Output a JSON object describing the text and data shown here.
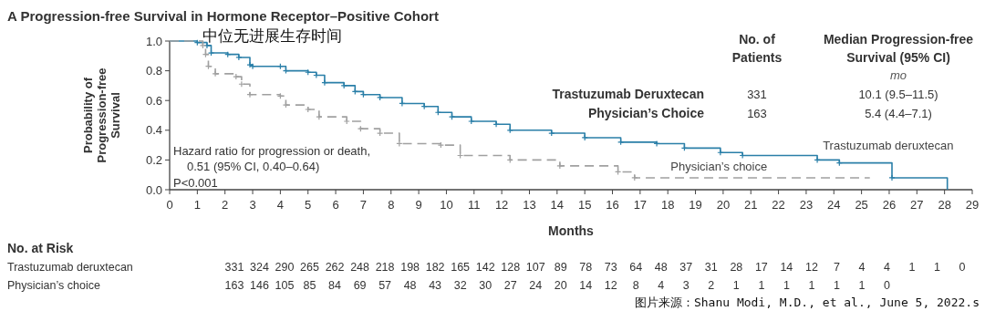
{
  "chart_data": {
    "type": "step",
    "title": "A  Progression-free Survival in Hormone Receptor–Positive Cohort",
    "subtitle": "中位无进展生存时间",
    "xlabel": "Months",
    "ylabel": "Probability of Progression-free Survival",
    "xlim": [
      0,
      29
    ],
    "xticks": [
      0,
      1,
      2,
      3,
      4,
      5,
      6,
      7,
      8,
      9,
      10,
      11,
      12,
      13,
      14,
      15,
      16,
      17,
      18,
      19,
      20,
      21,
      22,
      23,
      24,
      25,
      26,
      27,
      28,
      29
    ],
    "ylim": [
      0,
      1
    ],
    "yticks": [
      {
        "value": 0,
        "label": "0.0"
      },
      0.2,
      0.4,
      0.6,
      0.8,
      {
        "value": 1,
        "label": "1.0"
      }
    ],
    "grid": false,
    "marker": "cross",
    "series": [
      {
        "name": "Trastuzumab deruxtecan",
        "color": "#2a7fa8",
        "line_style": "solid",
        "x": [
          0,
          1,
          1.35,
          1.5,
          2.1,
          2.5,
          2.9,
          3.0,
          4.0,
          4.2,
          5.0,
          5.3,
          5.6,
          6.3,
          6.7,
          7.0,
          7.6,
          8.4,
          9.2,
          9.7,
          10.2,
          10.9,
          11.8,
          12.3,
          13.8,
          15.0,
          16.3,
          17.6,
          18.6,
          19.9,
          20.7,
          23.4,
          24.2,
          26.1,
          28.1
        ],
        "values": [
          1,
          0.99,
          0.97,
          0.92,
          0.91,
          0.89,
          0.84,
          0.83,
          0.83,
          0.8,
          0.79,
          0.77,
          0.72,
          0.7,
          0.66,
          0.64,
          0.62,
          0.58,
          0.56,
          0.52,
          0.49,
          0.46,
          0.44,
          0.4,
          0.38,
          0.35,
          0.32,
          0.31,
          0.28,
          0.25,
          0.23,
          0.2,
          0.18,
          0.08,
          0
        ]
      },
      {
        "name": "Physician’s choice",
        "color": "#a0a0a0",
        "line_style": "dashed",
        "x": [
          0,
          1.2,
          1.3,
          1.4,
          1.65,
          2.4,
          2.6,
          2.9,
          4.0,
          4.2,
          5.0,
          5.4,
          6.4,
          6.9,
          7.6,
          8.3,
          9.8,
          10.5,
          12.3,
          14.1,
          16.2,
          16.8,
          25.3
        ],
        "values": [
          1,
          0.97,
          0.91,
          0.83,
          0.78,
          0.76,
          0.71,
          0.64,
          0.63,
          0.57,
          0.54,
          0.49,
          0.46,
          0.41,
          0.38,
          0.31,
          0.3,
          0.23,
          0.2,
          0.16,
          0.12,
          0.08,
          0.08
        ]
      }
    ],
    "annotations": [
      "Hazard ratio for progression or death,",
      "0.51 (95% CI, 0.40–0.64)",
      "P<0.001",
      "No. of Patients",
      "Median Progression-free Survival (95% CI)",
      "mo",
      "Trastuzumab Deruxtecan",
      "Physician’s Choice",
      "331",
      "163",
      "10.1 (9.5–11.5)",
      "5.4 (4.4–7.1)",
      "No. at Risk",
      "Trastuzumab deruxtecan",
      "331 324 290 265 262 248 218 198 182 165 142 128 107 89 78 73 64 48 37 31 28 17 14 12 7 4 4 1 1 0",
      "Physician’s choice",
      "163 146 105 85 84 69 57 48 43 32 30 27 24 20 14 12 8 4 3 2 1 1 1 1 1 1 0",
      "图片来源：Shanu Modi, M.D., et al., June 5, 2022.s"
    ]
  }
}
